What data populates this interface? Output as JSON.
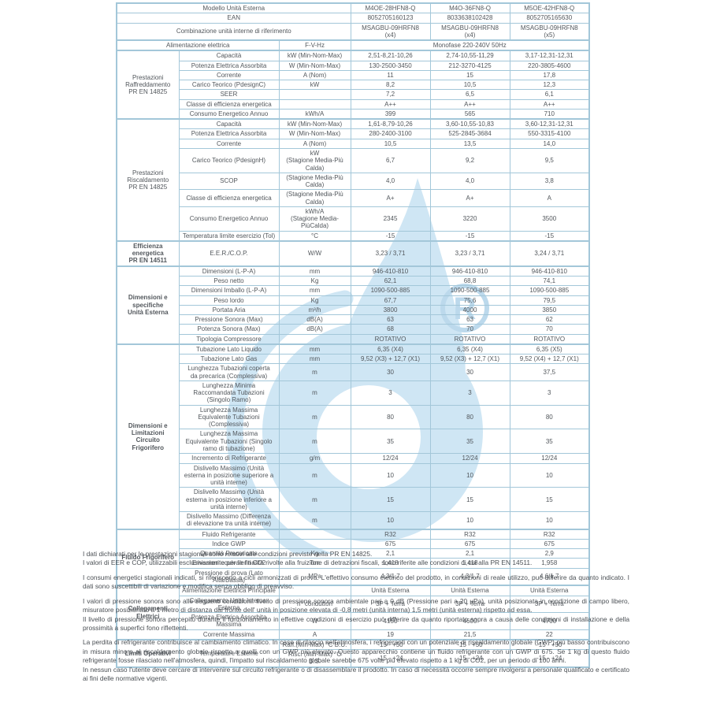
{
  "colors": {
    "border": "#a3c7d9",
    "table_text": "#52575c",
    "note_text": "#4a4f54",
    "watermark_fill": "#cfe6f4",
    "watermark_stroke": "#bcd9ec"
  },
  "watermark": {
    "name": "water-drop-logo",
    "registered_mark": "R"
  },
  "table": {
    "header_rows": [
      {
        "label": "Modello Unità Esterna",
        "values": [
          "M4OE-28HFN8-Q",
          "M4O-36FN8-Q",
          "M5OE-42HFN8-Q"
        ]
      },
      {
        "label": "EAN",
        "values": [
          "8052705160123",
          "8033638102428",
          "8052705165630"
        ]
      },
      {
        "label": "Combinazione unità interne di riferimento",
        "values": [
          "MSAGBU-09HRFN8\n(x4)",
          "MSAGBU-09HRFN8\n(x4)",
          "MSAGBU-09HRFN8\n(x5)"
        ]
      }
    ],
    "power_row": {
      "label": "Alimentazione elettrica",
      "unit": "F-V-Hz",
      "value": "Monofase 220-240V 50Hz"
    },
    "sections": [
      {
        "group": "Prestazioni\nRaffreddamento\nPR EN 14825",
        "bold": false,
        "rows": [
          {
            "param": "Capacità",
            "unit": "kW (Min-Nom-Max)",
            "values": [
              "2,51-8,21-10,26",
              "2,74-10,55-11,29",
              "3,17-12,31-12,31"
            ]
          },
          {
            "param": "Potenza Elettrica Assorbita",
            "unit": "W (Min-Nom-Max)",
            "values": [
              "130-2500-3450",
              "212-3270-4125",
              "220-3805-4600"
            ]
          },
          {
            "param": "Corrente",
            "unit": "A (Nom)",
            "values": [
              "11",
              "15",
              "17,8"
            ]
          },
          {
            "param": "Carico Teorico (PdesignC)",
            "unit": "kW",
            "values": [
              "8,2",
              "10,5",
              "12,3"
            ]
          },
          {
            "param": "SEER",
            "unit": "",
            "values": [
              "7,2",
              "6,5",
              "6,1"
            ]
          },
          {
            "param": "Classe di efficienza energetica",
            "unit": "",
            "values": [
              "A++",
              "A++",
              "A++"
            ]
          },
          {
            "param": "Consumo Energetico Annuo",
            "unit": "kWh/A",
            "values": [
              "399",
              "565",
              "710"
            ]
          }
        ]
      },
      {
        "group": "Prestazioni\nRiscaldamento\nPR EN 14825",
        "bold": false,
        "rows": [
          {
            "param": "Capacità",
            "unit": "kW (Min-Nom-Max)",
            "values": [
              "1,61-8,79-10,26",
              "3,60-10,55-10,83",
              "3,60-12,31-12,31"
            ]
          },
          {
            "param": "Potenza Elettrica Assorbita",
            "unit": "W (Min-Nom-Max)",
            "values": [
              "280-2400-3100",
              "525-2845-3684",
              "550-3315-4100"
            ]
          },
          {
            "param": "Corrente",
            "unit": "A (Nom)",
            "values": [
              "10,5",
              "13,5",
              "14,0"
            ]
          },
          {
            "param": "Carico Teorico (PdesignH)",
            "unit": "kW\n(Stagione Media-Più Calda)",
            "values": [
              "6,7",
              "9,2",
              "9,5"
            ]
          },
          {
            "param": "SCOP",
            "unit": "(Stagione Media-Più Calda)",
            "values": [
              "4,0",
              "4,0",
              "3,8"
            ]
          },
          {
            "param": "Classe di efficienza energetica",
            "unit": "(Stagione Media-Più Calda)",
            "values": [
              "A+",
              "A+",
              "A"
            ]
          },
          {
            "param": "Consumo Energetico Annuo",
            "unit": "kWh/A\n(Stagione Media-PiùCalda)",
            "values": [
              "2345",
              "3220",
              "3500"
            ]
          },
          {
            "param": "Temperatura limite esercizio (Tol)",
            "unit": "°C",
            "values": [
              "-15",
              "-15",
              "-15"
            ]
          }
        ]
      },
      {
        "group": "Efficienza\nenergetica\nPR EN 14511",
        "bold": true,
        "rows": [
          {
            "param": "E.E.R./C.O.P.",
            "unit": "W/W",
            "values": [
              "3,23 / 3,71",
              "3,23 / 3,71",
              "3,24 / 3,71"
            ]
          }
        ]
      },
      {
        "group": "Dimensioni e specifiche\nUnità Esterna",
        "bold": true,
        "rows": [
          {
            "param": "Dimensioni (L-P-A)",
            "unit": "mm",
            "values": [
              "946-410-810",
              "946-410-810",
              "946-410-810"
            ]
          },
          {
            "param": "Peso netto",
            "unit": "Kg",
            "values": [
              "62,1",
              "68,8",
              "74,1"
            ]
          },
          {
            "param": "Dimensioni Imballo (L-P-A)",
            "unit": "mm",
            "values": [
              "1090-500-885",
              "1090-500-885",
              "1090-500-885"
            ]
          },
          {
            "param": "Peso lordo",
            "unit": "Kg",
            "values": [
              "67,7",
              "75,6",
              "79,5"
            ]
          },
          {
            "param": "Portata Aria",
            "unit": "m³/h",
            "values": [
              "3800",
              "4000",
              "3850"
            ]
          },
          {
            "param": "Pressione Sonora (Max)",
            "unit": "dB(A)",
            "values": [
              "63",
              "63",
              "62"
            ]
          },
          {
            "param": "Potenza Sonora (Max)",
            "unit": "dB(A)",
            "values": [
              "68",
              "70",
              "70"
            ]
          },
          {
            "param": "Tipologia Compressore",
            "unit": "",
            "values": [
              "ROTATIVO",
              "ROTATIVO",
              "ROTATIVO"
            ]
          }
        ]
      },
      {
        "group": "Dimensioni e Limitazioni\nCircuito Frigorifero",
        "bold": true,
        "rows": [
          {
            "param": "Tubazione Lato Liquido",
            "unit": "mm",
            "values": [
              "6,35 (X4)",
              "6,35 (X4)",
              "6,35 (X5)"
            ]
          },
          {
            "param": "Tubazione Lato Gas",
            "unit": "mm",
            "values": [
              "9,52 (X3) + 12,7 (X1)",
              "9,52 (X3) + 12,7 (X1)",
              "9,52 (X4) + 12,7 (X1)"
            ]
          },
          {
            "param": "Lunghezza Tubazioni coperta\nda precarica (Complessiva)",
            "unit": "m",
            "values": [
              "30",
              "30",
              "37,5"
            ]
          },
          {
            "param": "Lunghezza Minima\nRaccomandata Tubazioni\n(Singolo Ramo)",
            "unit": "m",
            "values": [
              "3",
              "3",
              "3"
            ]
          },
          {
            "param": "Lunghezza Massima\nEquivalente Tubazioni\n(Complessiva)",
            "unit": "m",
            "values": [
              "80",
              "80",
              "80"
            ]
          },
          {
            "param": "Lunghezza Massima\nEquivalente Tubazioni (Singolo\nramo di tubazione)",
            "unit": "m",
            "values": [
              "35",
              "35",
              "35"
            ]
          },
          {
            "param": "Incremento di Refrigerante",
            "unit": "g/m",
            "values": [
              "12/24",
              "12/24",
              "12/24"
            ]
          },
          {
            "param": "Dislivello Massimo (Unità\nesterna in posizione superiore a\nunità interne)",
            "unit": "m",
            "values": [
              "10",
              "10",
              "10"
            ]
          },
          {
            "param": "Dislivello Massimo (Unità\nesterna in posizione inferiore a\nunità interne)",
            "unit": "m",
            "values": [
              "15",
              "15",
              "15"
            ]
          },
          {
            "param": "Dislivello Massimo (Differenza\ndi elevazione tra unità interne)",
            "unit": "m",
            "values": [
              "10",
              "10",
              "10"
            ]
          }
        ]
      },
      {
        "group": "Fluido Frigorifero",
        "bold": true,
        "rows": [
          {
            "param": "Fluido Refrigerante",
            "unit": "",
            "values": [
              "R32",
              "R32",
              "R32"
            ]
          },
          {
            "param": "Indice GWP",
            "unit": "",
            "values": [
              "675",
              "675",
              "675"
            ]
          },
          {
            "param": "Quantità Precaricata",
            "unit": "Kg",
            "values": [
              "2,1",
              "2,1",
              "2,9"
            ]
          },
          {
            "param": "Emissioni equivalenti CO2",
            "unit": "Ton",
            "values": [
              "1,418",
              "1,418",
              "1,958"
            ]
          },
          {
            "param": "Pressione di prova (Lato Alta/Bassa)",
            "unit": "MPa",
            "values": [
              "4,3/1,7",
              "4,3/1,7",
              "4,6/1,7"
            ]
          }
        ]
      },
      {
        "group": "Collegamenti\nElettrici",
        "bold": true,
        "rows": [
          {
            "param": "Alimentazione Elettrica Principale",
            "unit": "",
            "values": [
              "Unità Esterna",
              "Unità Esterna",
              "Unità Esterna"
            ]
          },
          {
            "param": "Collegamento Unità Interna-Esterna",
            "unit": "n° conduttori",
            "values": [
              "3P + Terra",
              "3P + Terra",
              "3P + Terra"
            ]
          },
          {
            "param": "Potenza Elettrica Assorbita Massima",
            "unit": "W",
            "values": [
              "4150",
              "4600",
              "4700"
            ]
          },
          {
            "param": "Corrente Massima",
            "unit": "A",
            "values": [
              "19",
              "21,5",
              "22"
            ]
          }
        ]
      },
      {
        "group": "Limiti Operativi",
        "bold": true,
        "rows": [
          {
            "param": "Temperature Esterne",
            "param_rowspan": 2,
            "unit": "Raff.(Min-Max) °C B.U.",
            "values": [
              "-15 - +50",
              "-15 - +50",
              "-15 - +50"
            ]
          },
          {
            "param": null,
            "unit": "Risc. (Min-Max) °C B.S.",
            "values": [
              "-15 - +24",
              "-15 - +24",
              "-15 - +24"
            ]
          }
        ]
      }
    ]
  },
  "footnotes": [
    {
      "gap_before": false,
      "text": "I dati dichiarati per le prestazioni stagionali sono relativi alle condizioni previste nella PR EN 14825."
    },
    {
      "gap_before": false,
      "text": "I valori di EER e COP, utilizzabili esclusivamente per le finalità rivolte alla fruizione di detrazioni fiscali, sono riferite alle condizioni di cui alla PR EN 14511."
    },
    {
      "gap_before": true,
      "text": "I consumi energetici stagionali indicati, si riferiscono a cicli armonizzati di prova. L'effettivo consumo elettrico del prodotto, in condizioni di reale utilizzo, può differire da quanto indicato. I dati sono suscettibili di variazione e modifica senza obbligo di preavviso."
    },
    {
      "gap_before": true,
      "text": "I valori di pressione sonora sono alle seguenti condizioni: livello di pressione sonora ambientale pari a 0 dB (Pressione pari a 20 µPa), unità posizionata in condizione di campo libero, misuratore posizionato a 1 metro di distanza dal fronte dell' unità in posizione elevata di -0,8 metri (unità interna) 1,5 metri (unità esterna) rispetto ad essa."
    },
    {
      "gap_before": false,
      "text": "Il livello di pressione sonora percepito durante il funzionamento in effettive condizioni di esercizio può differire da quanto riportato sopra a causa delle condizioni di installazione e della prossimità a superfici fono riflettenti."
    },
    {
      "gap_before": true,
      "text": "La perdita di refrigerante contribuisce al cambiamento climatico. In caso di rilascio nell'atmosfera, i refrigeranti con un potenziale di riscaldamento globale (GWP) più basso contribuiscono in misura minore al riscaldamento globale rispetto a quelli con un GWP più elevato. Questo apparecchio contiene un fluido refrigerante con un GWP di 675. Se 1 kg di questo fluido refrigerante fosse rilasciato nell'atmosfera, quindi, l'impatto sul riscaldamento globale sarebbe 675 volte più elevato rispetto a 1 kg di CO2, per un periodo di 100 anni."
    },
    {
      "gap_before": false,
      "text": "In nessun caso l'utente deve cercare di intervenire sul circuito refrigerante o di disassemblare il prodotto. In caso di necessità occorre sempre rivolgersi a personale qualificato e certificato ai fini delle normative vigenti."
    }
  ]
}
